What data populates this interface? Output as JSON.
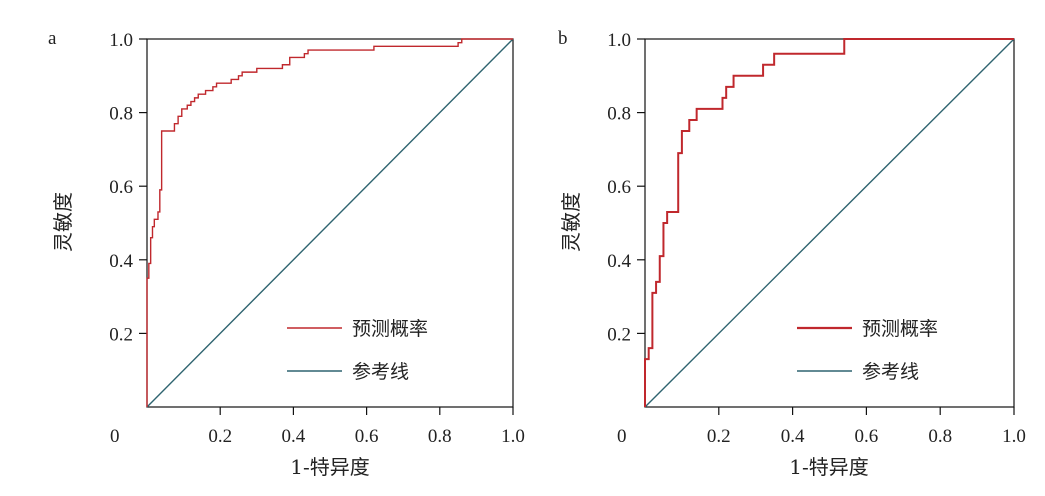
{
  "chart_data": [
    {
      "type": "line",
      "panel_label": "a",
      "title": "",
      "xlabel": "1-特异度",
      "ylabel": "灵敏度",
      "xlim": [
        0,
        1
      ],
      "ylim": [
        0,
        1
      ],
      "xticks": [
        "0.2",
        "0.4",
        "0.6",
        "0.8",
        "1.0"
      ],
      "yticks": [
        "0.2",
        "0.4",
        "0.6",
        "0.8",
        "1.0"
      ],
      "origin_label": "0",
      "legend_position": "bottom-right",
      "series": [
        {
          "name": "预测概率",
          "color": "#c0282d",
          "points": [
            [
              0,
              0
            ],
            [
              0,
              0.35
            ],
            [
              0.005,
              0.35
            ],
            [
              0.005,
              0.39
            ],
            [
              0.01,
              0.39
            ],
            [
              0.01,
              0.46
            ],
            [
              0.015,
              0.46
            ],
            [
              0.015,
              0.49
            ],
            [
              0.02,
              0.49
            ],
            [
              0.02,
              0.51
            ],
            [
              0.03,
              0.51
            ],
            [
              0.03,
              0.53
            ],
            [
              0.035,
              0.53
            ],
            [
              0.035,
              0.59
            ],
            [
              0.04,
              0.59
            ],
            [
              0.04,
              0.75
            ],
            [
              0.075,
              0.75
            ],
            [
              0.075,
              0.77
            ],
            [
              0.085,
              0.77
            ],
            [
              0.085,
              0.79
            ],
            [
              0.095,
              0.79
            ],
            [
              0.095,
              0.81
            ],
            [
              0.11,
              0.81
            ],
            [
              0.11,
              0.82
            ],
            [
              0.12,
              0.82
            ],
            [
              0.12,
              0.83
            ],
            [
              0.13,
              0.83
            ],
            [
              0.13,
              0.84
            ],
            [
              0.14,
              0.84
            ],
            [
              0.14,
              0.85
            ],
            [
              0.16,
              0.85
            ],
            [
              0.16,
              0.86
            ],
            [
              0.18,
              0.86
            ],
            [
              0.18,
              0.87
            ],
            [
              0.19,
              0.87
            ],
            [
              0.19,
              0.88
            ],
            [
              0.23,
              0.88
            ],
            [
              0.23,
              0.89
            ],
            [
              0.25,
              0.89
            ],
            [
              0.25,
              0.9
            ],
            [
              0.26,
              0.9
            ],
            [
              0.26,
              0.91
            ],
            [
              0.3,
              0.91
            ],
            [
              0.3,
              0.92
            ],
            [
              0.37,
              0.92
            ],
            [
              0.37,
              0.93
            ],
            [
              0.39,
              0.93
            ],
            [
              0.39,
              0.95
            ],
            [
              0.43,
              0.95
            ],
            [
              0.43,
              0.96
            ],
            [
              0.44,
              0.96
            ],
            [
              0.44,
              0.97
            ],
            [
              0.62,
              0.97
            ],
            [
              0.62,
              0.98
            ],
            [
              0.85,
              0.98
            ],
            [
              0.85,
              0.99
            ],
            [
              0.86,
              0.99
            ],
            [
              0.86,
              1.0
            ],
            [
              1.0,
              1.0
            ]
          ]
        },
        {
          "name": "参考线",
          "color": "#2f6470",
          "points": [
            [
              0,
              0
            ],
            [
              1,
              1
            ]
          ]
        }
      ]
    },
    {
      "type": "line",
      "panel_label": "b",
      "title": "",
      "xlabel": "1-特异度",
      "ylabel": "灵敏度",
      "xlim": [
        0,
        1
      ],
      "ylim": [
        0,
        1
      ],
      "xticks": [
        "0.2",
        "0.4",
        "0.6",
        "0.8",
        "1.0"
      ],
      "yticks": [
        "0.2",
        "0.4",
        "0.6",
        "0.8",
        "1.0"
      ],
      "origin_label": "0",
      "legend_position": "bottom-right",
      "series": [
        {
          "name": "预测概率",
          "color": "#c0282d",
          "points": [
            [
              0,
              0
            ],
            [
              0,
              0.13
            ],
            [
              0.01,
              0.13
            ],
            [
              0.01,
              0.16
            ],
            [
              0.02,
              0.16
            ],
            [
              0.02,
              0.31
            ],
            [
              0.03,
              0.31
            ],
            [
              0.03,
              0.34
            ],
            [
              0.04,
              0.34
            ],
            [
              0.04,
              0.41
            ],
            [
              0.05,
              0.41
            ],
            [
              0.05,
              0.5
            ],
            [
              0.06,
              0.5
            ],
            [
              0.06,
              0.53
            ],
            [
              0.09,
              0.53
            ],
            [
              0.09,
              0.69
            ],
            [
              0.1,
              0.69
            ],
            [
              0.1,
              0.75
            ],
            [
              0.12,
              0.75
            ],
            [
              0.12,
              0.78
            ],
            [
              0.14,
              0.78
            ],
            [
              0.14,
              0.81
            ],
            [
              0.21,
              0.81
            ],
            [
              0.21,
              0.84
            ],
            [
              0.22,
              0.84
            ],
            [
              0.22,
              0.87
            ],
            [
              0.24,
              0.87
            ],
            [
              0.24,
              0.9
            ],
            [
              0.32,
              0.9
            ],
            [
              0.32,
              0.93
            ],
            [
              0.35,
              0.93
            ],
            [
              0.35,
              0.96
            ],
            [
              0.54,
              0.96
            ],
            [
              0.54,
              1.0
            ],
            [
              1.0,
              1.0
            ]
          ]
        },
        {
          "name": "参考线",
          "color": "#2f6470",
          "points": [
            [
              0,
              0
            ],
            [
              1,
              1
            ]
          ]
        }
      ]
    }
  ]
}
